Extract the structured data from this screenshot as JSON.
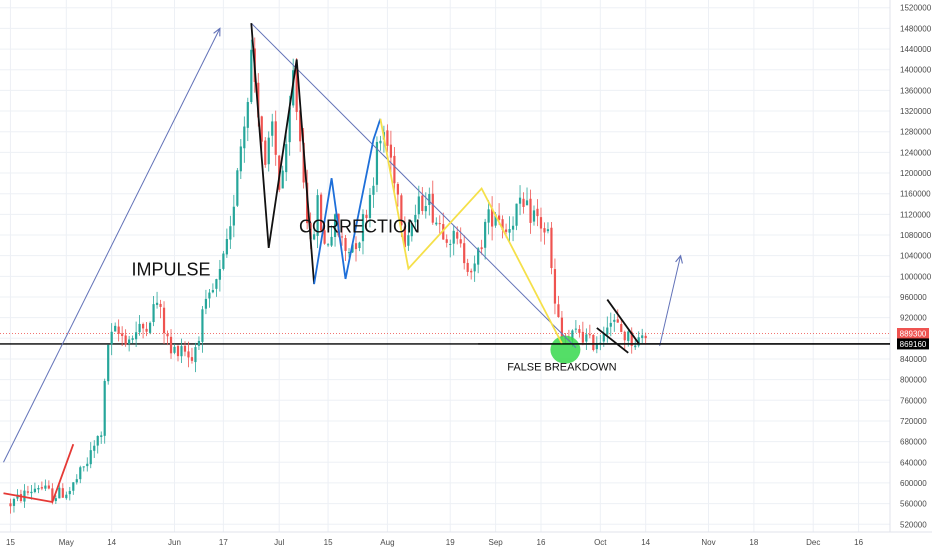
{
  "chart_data": {
    "type": "candlestick",
    "y_ticks": [
      520000,
      560000,
      600000,
      640000,
      680000,
      720000,
      760000,
      800000,
      840000,
      880000,
      920000,
      960000,
      1000000,
      1040000,
      1080000,
      1120000,
      1160000,
      1200000,
      1240000,
      1280000,
      1320000,
      1360000,
      1400000,
      1440000,
      1480000,
      1520000
    ],
    "y_tick_labels": [
      "520000",
      "560000",
      "600000",
      "640000",
      "680000",
      "720000",
      "760000",
      "800000",
      "840000",
      "880000",
      "920000",
      "960000",
      "1000000",
      "1040000",
      "1080000",
      "1120000",
      "1160000",
      "1200000",
      "1240000",
      "1280000",
      "1320000",
      "1360000",
      "1400000",
      "1440000",
      "1480000",
      "1520000"
    ],
    "ylim": [
      505000,
      1535000
    ],
    "x_ticks": [
      {
        "day": 0,
        "label": "15"
      },
      {
        "day": 16,
        "label": "May"
      },
      {
        "day": 29,
        "label": "14"
      },
      {
        "day": 47,
        "label": "Jun"
      },
      {
        "day": 61,
        "label": "17"
      },
      {
        "day": 77,
        "label": "Jul"
      },
      {
        "day": 91,
        "label": "15"
      },
      {
        "day": 108,
        "label": "Aug"
      },
      {
        "day": 126,
        "label": "19"
      },
      {
        "day": 139,
        "label": "Sep"
      },
      {
        "day": 152,
        "label": "16"
      },
      {
        "day": 169,
        "label": "Oct"
      },
      {
        "day": 182,
        "label": "14"
      },
      {
        "day": 200,
        "label": "Nov"
      },
      {
        "day": 213,
        "label": "18"
      },
      {
        "day": 230,
        "label": "Dec"
      },
      {
        "day": 243,
        "label": "16"
      }
    ],
    "x_domain": [
      -3,
      252
    ],
    "price_levels": [
      {
        "value": 889300,
        "label": "889300",
        "color": "#ef5350",
        "style": "dotted"
      },
      {
        "value": 869160,
        "label": "869160",
        "color": "#000000",
        "style": "solid"
      }
    ],
    "waypoints": [
      {
        "day": 0,
        "value": 560000
      },
      {
        "day": 8,
        "value": 595000
      },
      {
        "day": 12,
        "value": 575000
      },
      {
        "day": 17,
        "value": 585000
      },
      {
        "day": 22,
        "value": 640000
      },
      {
        "day": 26,
        "value": 700000
      },
      {
        "day": 28,
        "value": 870000
      },
      {
        "day": 30,
        "value": 890000
      },
      {
        "day": 34,
        "value": 880000
      },
      {
        "day": 38,
        "value": 900000
      },
      {
        "day": 42,
        "value": 950000
      },
      {
        "day": 46,
        "value": 850000
      },
      {
        "day": 49,
        "value": 870000
      },
      {
        "day": 52,
        "value": 840000
      },
      {
        "day": 55,
        "value": 920000
      },
      {
        "day": 60,
        "value": 1000000
      },
      {
        "day": 63,
        "value": 1080000
      },
      {
        "day": 65,
        "value": 1220000
      },
      {
        "day": 67,
        "value": 1300000
      },
      {
        "day": 69,
        "value": 1430000
      },
      {
        "day": 71,
        "value": 1330000
      },
      {
        "day": 73,
        "value": 1200000
      },
      {
        "day": 75,
        "value": 1290000
      },
      {
        "day": 77,
        "value": 1180000
      },
      {
        "day": 79,
        "value": 1230000
      },
      {
        "day": 81,
        "value": 1390000
      },
      {
        "day": 84,
        "value": 1200000
      },
      {
        "day": 86,
        "value": 1050000
      },
      {
        "day": 88,
        "value": 1140000
      },
      {
        "day": 90,
        "value": 1060000
      },
      {
        "day": 93,
        "value": 1100000
      },
      {
        "day": 96,
        "value": 1050000
      },
      {
        "day": 100,
        "value": 1080000
      },
      {
        "day": 103,
        "value": 1160000
      },
      {
        "day": 105,
        "value": 1240000
      },
      {
        "day": 107,
        "value": 1280000
      },
      {
        "day": 110,
        "value": 1200000
      },
      {
        "day": 113,
        "value": 1080000
      },
      {
        "day": 116,
        "value": 1120000
      },
      {
        "day": 119,
        "value": 1160000
      },
      {
        "day": 122,
        "value": 1110000
      },
      {
        "day": 126,
        "value": 1080000
      },
      {
        "day": 130,
        "value": 1040000
      },
      {
        "day": 133,
        "value": 1010000
      },
      {
        "day": 136,
        "value": 1100000
      },
      {
        "day": 139,
        "value": 1130000
      },
      {
        "day": 142,
        "value": 1090000
      },
      {
        "day": 145,
        "value": 1130000
      },
      {
        "day": 150,
        "value": 1120000
      },
      {
        "day": 154,
        "value": 1080000
      },
      {
        "day": 156,
        "value": 940000
      },
      {
        "day": 158,
        "value": 880000
      },
      {
        "day": 160,
        "value": 875000
      },
      {
        "day": 163,
        "value": 895000
      },
      {
        "day": 166,
        "value": 870000
      },
      {
        "day": 169,
        "value": 880000
      },
      {
        "day": 171,
        "value": 920000
      },
      {
        "day": 174,
        "value": 900000
      },
      {
        "day": 177,
        "value": 880000
      },
      {
        "day": 180,
        "value": 875000
      },
      {
        "day": 182,
        "value": 889300
      }
    ],
    "drawings": [
      {
        "name": "impulse-arrow",
        "kind": "arrow",
        "color": "#6272b8",
        "points": [
          [
            -2,
            640000
          ],
          [
            60,
            1480000
          ]
        ]
      },
      {
        "name": "correction-trendline",
        "kind": "line",
        "color": "#6272b8",
        "points": [
          [
            69,
            1490000
          ],
          [
            162,
            862000
          ]
        ]
      },
      {
        "name": "projection-arrow",
        "kind": "arrow",
        "color": "#6272b8",
        "points": [
          [
            186,
            865000
          ],
          [
            192,
            1040000
          ]
        ]
      },
      {
        "name": "red-wave",
        "kind": "polyline",
        "color": "#e53935",
        "points": [
          [
            -2,
            580000
          ],
          [
            12,
            563000
          ],
          [
            18,
            675000
          ]
        ]
      },
      {
        "name": "black-w-pattern",
        "kind": "polyline",
        "color": "#111111",
        "points": [
          [
            69,
            1490000
          ],
          [
            74,
            1055000
          ],
          [
            82,
            1420000
          ],
          [
            87,
            985000
          ]
        ]
      },
      {
        "name": "blue-zigzag",
        "kind": "polyline",
        "color": "#1e6fd9",
        "points": [
          [
            87,
            985000
          ],
          [
            92,
            1190000
          ],
          [
            96,
            995000
          ],
          [
            104,
            1265000
          ],
          [
            106,
            1305000
          ]
        ]
      },
      {
        "name": "yellow-zigzag",
        "kind": "polyline",
        "color": "#f5e04a",
        "points": [
          [
            106,
            1305000
          ],
          [
            114,
            1015000
          ],
          [
            135,
            1170000
          ],
          [
            158,
            870000
          ]
        ]
      },
      {
        "name": "black-horizontal-support",
        "kind": "line",
        "color": "#000000",
        "points": [
          [
            134,
            869160
          ],
          [
            252,
            869160
          ]
        ]
      },
      {
        "name": "pennant-upper",
        "kind": "line",
        "color": "#111111",
        "points": [
          [
            171,
            955000
          ],
          [
            180,
            870000
          ]
        ]
      },
      {
        "name": "pennant-lower",
        "kind": "line",
        "color": "#111111",
        "points": [
          [
            168,
            900000
          ],
          [
            177,
            852000
          ]
        ]
      }
    ],
    "highlight": {
      "name": "false-breakdown-circle",
      "day": 159,
      "value": 858000,
      "color": "#36d84c"
    },
    "annotations": [
      {
        "name": "impulse-label",
        "text": "IMPULSE",
        "day": 46,
        "value": 1002000,
        "size": 18
      },
      {
        "name": "correction-label",
        "text": "CORRECTION",
        "day": 100,
        "value": 1085000,
        "size": 18
      },
      {
        "name": "false-breakdown-label",
        "text": "FALSE BREAKDOWN",
        "day": 158,
        "value": 818000,
        "size": 11
      }
    ],
    "colors": {
      "up": "#26a69a",
      "down": "#ef5350",
      "grid": "#edf0f5",
      "axis_text": "#4a4a4a"
    }
  }
}
